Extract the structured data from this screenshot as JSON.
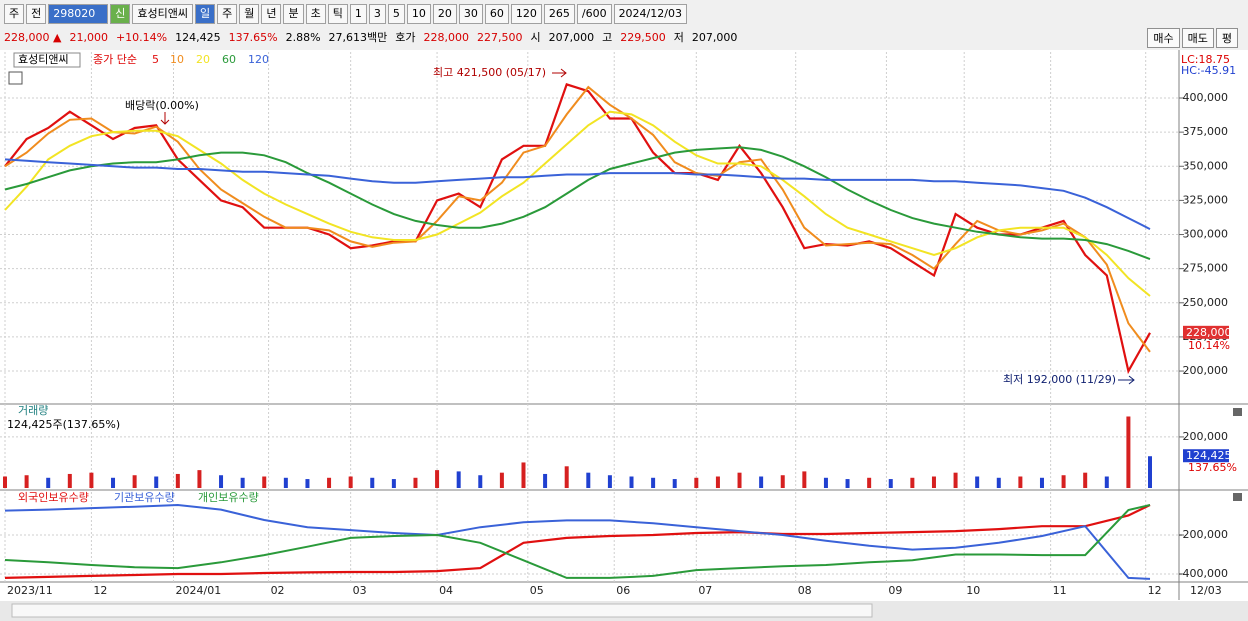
{
  "toolbar": [
    "주",
    "전",
    "298020",
    "신",
    "효성티앤씨",
    "일",
    "주",
    "월",
    "년",
    "분",
    "초",
    "틱",
    "1",
    "3",
    "5",
    "10",
    "20",
    "30",
    "60",
    "120",
    "265",
    "/600",
    "2024/12/03"
  ],
  "info_bar": [
    {
      "text": "228,000 ▲",
      "color": "#d60000"
    },
    {
      "text": "21,000",
      "color": "#d60000"
    },
    {
      "text": "+10.14%",
      "color": "#d60000"
    },
    {
      "text": "124,425",
      "color": "#000000"
    },
    {
      "text": "137.65%",
      "color": "#d60000"
    },
    {
      "text": "2.88%",
      "color": "#000000"
    },
    {
      "text": "27,613백만",
      "color": "#000000"
    },
    {
      "text": "호가",
      "color": "#000000"
    },
    {
      "text": "228,000",
      "color": "#d60000"
    },
    {
      "text": "227,500",
      "color": "#d60000"
    },
    {
      "text": "시",
      "color": "#000000"
    },
    {
      "text": "207,000",
      "color": "#000000"
    },
    {
      "text": "고",
      "color": "#000000"
    },
    {
      "text": "229,500",
      "color": "#d60000"
    },
    {
      "text": "저",
      "color": "#000000"
    },
    {
      "text": "207,000",
      "color": "#000000"
    }
  ],
  "buttons": [
    "매수",
    "매도",
    "평"
  ],
  "chart_data": [
    {
      "type": "line",
      "title": "효성티앤씨",
      "legend_prefix": "종가 단순",
      "corner_labels": [
        "LC:18.75",
        "HC:-45.91"
      ],
      "annotations": [
        "최고 421,500 (05/17)",
        "최저 192,000 (11/29)",
        "배당락(0.00%)"
      ],
      "last_value_label": "228,000",
      "last_change_label": "10.14%",
      "xlim": [
        0,
        265
      ],
      "x": [
        0,
        5,
        10,
        15,
        20,
        25,
        30,
        35,
        40,
        45,
        50,
        55,
        60,
        65,
        70,
        75,
        80,
        85,
        90,
        95,
        100,
        105,
        110,
        115,
        120,
        125,
        130,
        135,
        140,
        145,
        150,
        155,
        160,
        165,
        170,
        175,
        180,
        185,
        190,
        195,
        200,
        205,
        210,
        215,
        220,
        225,
        230,
        235,
        240,
        245,
        250,
        255,
        260,
        265
      ],
      "ylim": [
        176600,
        431500
      ],
      "yticks": [
        {
          "value": 200000,
          "label": "200,000"
        },
        {
          "value": 225000,
          "label": "225,000"
        },
        {
          "value": 250000,
          "label": "250,000"
        },
        {
          "value": 275000,
          "label": "275,000"
        },
        {
          "value": 300000,
          "label": "300,000"
        },
        {
          "value": 325000,
          "label": "325,000"
        },
        {
          "value": 350000,
          "label": "350,000"
        },
        {
          "value": 375000,
          "label": "375,000"
        },
        {
          "value": 400000,
          "label": "400,000"
        }
      ],
      "grid": true,
      "series": [
        {
          "name": "5",
          "color": "#e01010",
          "values": [
            350000,
            370000,
            378000,
            390000,
            380000,
            370000,
            378000,
            380000,
            355000,
            340000,
            325000,
            320000,
            305000,
            305000,
            305000,
            300000,
            290000,
            292000,
            295000,
            295000,
            325000,
            330000,
            320000,
            355000,
            365000,
            365000,
            410000,
            405000,
            385000,
            385000,
            360000,
            345000,
            345000,
            340000,
            365000,
            345000,
            320000,
            290000,
            293000,
            292000,
            295000,
            290000,
            280000,
            270000,
            315000,
            305000,
            300000,
            300000,
            305000,
            310000,
            285000,
            270000,
            200000,
            228000
          ]
        },
        {
          "name": "10",
          "color": "#f08c1e",
          "values": [
            350000,
            360000,
            374000,
            384000,
            385000,
            375000,
            374000,
            379000,
            368000,
            348000,
            333000,
            323000,
            313000,
            305000,
            305000,
            303000,
            295000,
            291000,
            294000,
            295000,
            310000,
            328000,
            325000,
            338000,
            360000,
            365000,
            388000,
            408000,
            395000,
            385000,
            373000,
            353000,
            345000,
            343000,
            353000,
            355000,
            333000,
            305000,
            292000,
            293000,
            294000,
            293000,
            285000,
            275000,
            293000,
            310000,
            303000,
            300000,
            303000,
            308000,
            298000,
            278000,
            235000,
            214000
          ]
        },
        {
          "name": "20",
          "color": "#f2e424",
          "values": [
            318000,
            335000,
            355000,
            365000,
            372000,
            375000,
            376000,
            376000,
            372000,
            362000,
            352000,
            340000,
            330000,
            322000,
            315000,
            308000,
            302000,
            298000,
            296000,
            296000,
            300000,
            308000,
            316000,
            328000,
            338000,
            352000,
            366000,
            380000,
            390000,
            388000,
            380000,
            368000,
            358000,
            352000,
            352000,
            350000,
            340000,
            328000,
            315000,
            305000,
            300000,
            295000,
            290000,
            285000,
            290000,
            298000,
            303000,
            305000,
            305000,
            305000,
            298000,
            285000,
            268000,
            255000
          ]
        },
        {
          "name": "60",
          "color": "#2a9a3a",
          "values": [
            333000,
            337000,
            342000,
            347000,
            350000,
            352000,
            353000,
            353000,
            355000,
            358000,
            360000,
            360000,
            358000,
            353000,
            345000,
            338000,
            330000,
            322000,
            315000,
            310000,
            307000,
            305000,
            305000,
            308000,
            313000,
            320000,
            330000,
            340000,
            348000,
            352000,
            356000,
            360000,
            362000,
            363000,
            364000,
            362000,
            357000,
            350000,
            342000,
            333000,
            325000,
            318000,
            312000,
            308000,
            305000,
            302000,
            300000,
            298000,
            297000,
            297000,
            296000,
            293000,
            288000,
            282000
          ]
        },
        {
          "name": "120",
          "color": "#3a62d8",
          "values": [
            355000,
            354000,
            353000,
            352000,
            351000,
            350000,
            349000,
            349000,
            348000,
            348000,
            347000,
            346000,
            346000,
            345000,
            344000,
            343000,
            341000,
            339000,
            338000,
            338000,
            339000,
            340000,
            341000,
            342000,
            342000,
            343000,
            344000,
            344000,
            345000,
            345000,
            345000,
            345000,
            344000,
            344000,
            343000,
            342000,
            341000,
            341000,
            340000,
            340000,
            340000,
            340000,
            340000,
            339000,
            339000,
            338000,
            337000,
            336000,
            334000,
            332000,
            327000,
            320000,
            312000,
            304000
          ]
        }
      ]
    },
    {
      "type": "bar",
      "title": "거래량",
      "subtitle": "124,425주(137.65%)",
      "last_value_label": "124,425",
      "last_change_label": "137.65%",
      "up_color": "#d62020",
      "down_color": "#2040d0",
      "xlim": [
        0,
        265
      ],
      "x": [
        0,
        5,
        10,
        15,
        20,
        25,
        30,
        35,
        40,
        45,
        50,
        55,
        60,
        65,
        70,
        75,
        80,
        85,
        90,
        95,
        100,
        105,
        110,
        115,
        120,
        125,
        130,
        135,
        140,
        145,
        150,
        155,
        160,
        165,
        170,
        175,
        180,
        185,
        190,
        195,
        200,
        205,
        210,
        215,
        220,
        225,
        230,
        235,
        240,
        245,
        250,
        255,
        260,
        265
      ],
      "values": [
        45000,
        50000,
        40000,
        55000,
        60000,
        40000,
        50000,
        45000,
        55000,
        70000,
        50000,
        40000,
        45000,
        40000,
        35000,
        40000,
        45000,
        40000,
        35000,
        40000,
        70000,
        65000,
        50000,
        60000,
        100000,
        55000,
        85000,
        60000,
        50000,
        45000,
        40000,
        35000,
        40000,
        45000,
        60000,
        45000,
        50000,
        65000,
        40000,
        35000,
        40000,
        35000,
        40000,
        45000,
        60000,
        45000,
        40000,
        45000,
        40000,
        50000,
        60000,
        45000,
        280000,
        124425
      ],
      "ylim": [
        0,
        325000
      ],
      "yticks": [
        {
          "value": 200000,
          "label": "200,000"
        }
      ],
      "grid": true
    },
    {
      "type": "line",
      "xlim": [
        0,
        265
      ],
      "x": [
        0,
        10,
        20,
        30,
        40,
        50,
        60,
        70,
        80,
        90,
        100,
        110,
        120,
        130,
        140,
        150,
        160,
        170,
        180,
        190,
        200,
        210,
        220,
        230,
        240,
        250,
        260,
        265
      ],
      "ylim": [
        -430800,
        20500
      ],
      "yticks": [
        {
          "value": -200000,
          "label": "-200,000"
        },
        {
          "value": -400000,
          "label": "-400,000"
        }
      ],
      "xticks": [
        {
          "value": 0,
          "label": "2023/11"
        },
        {
          "value": 20,
          "label": "12"
        },
        {
          "value": 39,
          "label": "2024/01"
        },
        {
          "value": 61,
          "label": "02"
        },
        {
          "value": 80,
          "label": "03"
        },
        {
          "value": 100,
          "label": "04"
        },
        {
          "value": 121,
          "label": "05"
        },
        {
          "value": 141,
          "label": "06"
        },
        {
          "value": 160,
          "label": "07"
        },
        {
          "value": 183,
          "label": "08"
        },
        {
          "value": 204,
          "label": "09"
        },
        {
          "value": 222,
          "label": "10"
        },
        {
          "value": 242,
          "label": "11"
        },
        {
          "value": 264,
          "label": "12"
        }
      ],
      "x_end_label": "12/03",
      "grid": true,
      "series": [
        {
          "name": "외국인보유수량",
          "color": "#e01010",
          "values": [
            -420000,
            -415000,
            -410000,
            -405000,
            -400000,
            -400000,
            -395000,
            -392000,
            -390000,
            -390000,
            -385000,
            -370000,
            -240000,
            -215000,
            -205000,
            -200000,
            -190000,
            -185000,
            -195000,
            -195000,
            -190000,
            -185000,
            -180000,
            -170000,
            -155000,
            -155000,
            -100000,
            -46000
          ]
        },
        {
          "name": "기관보유수량",
          "color": "#3a62d8",
          "values": [
            -75000,
            -70000,
            -62000,
            -55000,
            -46000,
            -70000,
            -123000,
            -160000,
            -175000,
            -190000,
            -200000,
            -160000,
            -135000,
            -125000,
            -125000,
            -140000,
            -160000,
            -180000,
            -200000,
            -230000,
            -255000,
            -275000,
            -265000,
            -240000,
            -205000,
            -155000,
            -420000,
            -425000
          ]
        },
        {
          "name": "개인보유수량",
          "color": "#2a9a3a",
          "values": [
            -328000,
            -340000,
            -354000,
            -365000,
            -370000,
            -340000,
            -303000,
            -260000,
            -215000,
            -205000,
            -200000,
            -240000,
            -330000,
            -420000,
            -420000,
            -410000,
            -380000,
            -370000,
            -360000,
            -354000,
            -340000,
            -330000,
            -300000,
            -300000,
            -303000,
            -303000,
            -72000,
            -46000
          ]
        }
      ]
    }
  ]
}
